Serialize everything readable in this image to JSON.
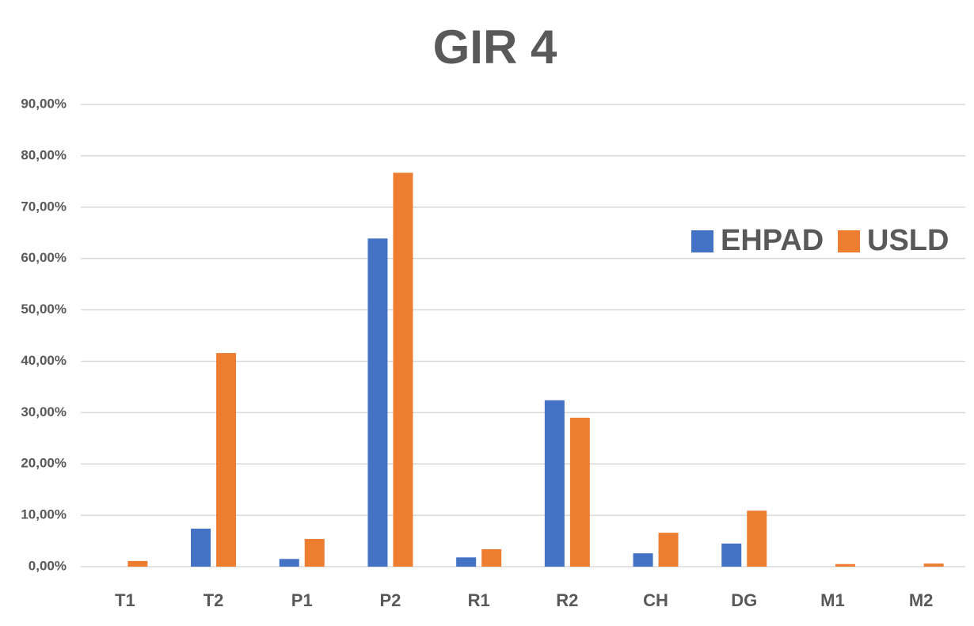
{
  "chart_data": {
    "type": "bar",
    "title": "GIR 4",
    "categories": [
      "T1",
      "T2",
      "P1",
      "P2",
      "R1",
      "R2",
      "CH",
      "DG",
      "M1",
      "M2"
    ],
    "series": [
      {
        "name": "EHPAD",
        "color": "#4472c4",
        "values": [
          0,
          7.4,
          1.5,
          63.9,
          1.8,
          32.4,
          2.6,
          4.5,
          0,
          0
        ]
      },
      {
        "name": "USLD",
        "color": "#ed7d31",
        "values": [
          1.1,
          41.6,
          5.4,
          76.7,
          3.4,
          29.0,
          6.6,
          10.9,
          0.5,
          0.6
        ]
      }
    ],
    "ylim": [
      0,
      90
    ],
    "yticks": [
      {
        "value": 0,
        "label": "0,00%"
      },
      {
        "value": 10,
        "label": "10,00%"
      },
      {
        "value": 20,
        "label": "20,00%"
      },
      {
        "value": 30,
        "label": "30,00%"
      },
      {
        "value": 40,
        "label": "40,00%"
      },
      {
        "value": 50,
        "label": "50,00%"
      },
      {
        "value": 60,
        "label": "60,00%"
      },
      {
        "value": 70,
        "label": "70,00%"
      },
      {
        "value": 80,
        "label": "80,00%"
      },
      {
        "value": 90,
        "label": "90,00%"
      }
    ],
    "grid": true,
    "legend": "upper right"
  }
}
